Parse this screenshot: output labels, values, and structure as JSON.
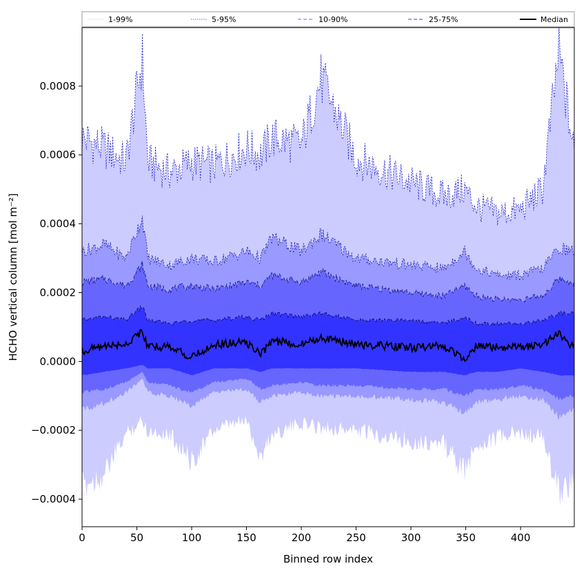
{
  "chart_data": {
    "type": "area",
    "xlabel": "Binned row index",
    "ylabel": "HCHO vertical column [mol m⁻²]",
    "xlim": [
      0,
      449
    ],
    "ylim": [
      -0.00048,
      0.00097
    ],
    "x_ticks": [
      0,
      50,
      100,
      150,
      200,
      250,
      300,
      350,
      400
    ],
    "x_tick_labels": [
      "0",
      "50",
      "100",
      "150",
      "200",
      "250",
      "300",
      "350",
      "400"
    ],
    "y_ticks": [
      -0.0004,
      -0.0002,
      0.0,
      0.0002,
      0.0004,
      0.0006,
      0.0008
    ],
    "y_tick_labels": [
      "−0.0004",
      "−0.0002",
      "0.0000",
      "0.0002",
      "0.0004",
      "0.0006",
      "0.0008"
    ],
    "grid": false,
    "legend_position": "top",
    "legend": [
      {
        "label": "1-99%",
        "style": "dotted",
        "color": "#ccccff"
      },
      {
        "label": "5-95%",
        "style": "dotted",
        "color": "#9999ff"
      },
      {
        "label": "10-90%",
        "style": "dashed",
        "color": "#6666ff"
      },
      {
        "label": "25-75%",
        "style": "dashed",
        "color": "#3333ff"
      },
      {
        "label": "Median",
        "style": "solid",
        "color": "#000000"
      }
    ],
    "x": [
      0,
      20,
      40,
      55,
      60,
      80,
      100,
      120,
      150,
      163,
      173,
      200,
      218,
      250,
      300,
      330,
      349,
      360,
      380,
      400,
      420,
      435,
      449
    ],
    "series": [
      {
        "name": "1-99%",
        "color": "#ccccff",
        "upper": [
          0.00065,
          0.00062,
          0.00058,
          0.00088,
          0.00058,
          0.00055,
          0.00058,
          0.00057,
          0.00062,
          0.0006,
          0.00065,
          0.00063,
          0.00082,
          0.00059,
          0.00052,
          0.00048,
          0.0005,
          0.00045,
          0.00043,
          0.00044,
          0.0005,
          0.0009,
          0.0006
        ],
        "lower": [
          -0.00036,
          -0.00033,
          -0.00021,
          -0.00017,
          -0.0002,
          -0.00021,
          -0.00029,
          -0.0002,
          -0.00017,
          -0.00028,
          -0.00021,
          -0.00018,
          -0.00019,
          -0.0002,
          -0.00023,
          -0.00024,
          -0.00032,
          -0.00024,
          -0.00022,
          -0.00021,
          -0.00022,
          -0.00038,
          -0.00034
        ]
      },
      {
        "name": "5-95%",
        "color": "#9999ff",
        "upper": [
          0.00032,
          0.00034,
          0.0003,
          0.00042,
          0.0003,
          0.00028,
          0.0003,
          0.00029,
          0.00032,
          0.0003,
          0.00036,
          0.00032,
          0.00037,
          0.0003,
          0.00028,
          0.00027,
          0.00032,
          0.00027,
          0.00025,
          0.00025,
          0.00027,
          0.00033,
          0.00032
        ],
        "lower": [
          -0.00014,
          -0.00012,
          -9e-05,
          -5e-05,
          -9e-05,
          -0.0001,
          -0.00013,
          -9e-05,
          -8e-05,
          -0.00012,
          -0.0001,
          -9e-05,
          -0.0001,
          -0.0001,
          -0.00011,
          -0.00012,
          -0.00015,
          -0.00012,
          -0.00011,
          -0.0001,
          -0.00011,
          -0.00016,
          -0.00014
        ]
      },
      {
        "name": "10-90%",
        "color": "#6666ff",
        "upper": [
          0.00023,
          0.00024,
          0.00022,
          0.00028,
          0.00022,
          0.00021,
          0.00022,
          0.00021,
          0.00023,
          0.00022,
          0.00025,
          0.00023,
          0.00026,
          0.00022,
          0.0002,
          0.00019,
          0.00022,
          0.00019,
          0.00018,
          0.00018,
          0.00019,
          0.00024,
          0.00023
        ],
        "lower": [
          -9e-05,
          -8e-05,
          -6e-05,
          -3e-05,
          -6e-05,
          -7e-05,
          -9e-05,
          -6e-05,
          -5e-05,
          -8e-05,
          -7e-05,
          -6e-05,
          -7e-05,
          -7e-05,
          -8e-05,
          -8e-05,
          -0.0001,
          -8e-05,
          -8e-05,
          -7e-05,
          -8e-05,
          -0.00011,
          -0.0001
        ]
      },
      {
        "name": "25-75%",
        "color": "#3333ff",
        "upper": [
          0.00012,
          0.00013,
          0.00012,
          0.00016,
          0.00012,
          0.00011,
          0.00012,
          0.00012,
          0.00013,
          0.00012,
          0.00014,
          0.00013,
          0.00014,
          0.00012,
          0.00012,
          0.00011,
          0.00013,
          0.00011,
          0.00011,
          0.00011,
          0.00012,
          0.00014,
          0.00014
        ],
        "lower": [
          -4e-05,
          -3e-05,
          -2e-05,
          -1e-05,
          -2e-05,
          -2e-05,
          -4e-05,
          -2e-05,
          -2e-05,
          -3e-05,
          -2e-05,
          -2e-05,
          -2e-05,
          -2e-05,
          -3e-05,
          -3e-05,
          -4e-05,
          -3e-05,
          -3e-05,
          -2e-05,
          -3e-05,
          -4e-05,
          -4e-05
        ]
      },
      {
        "name": "Median",
        "color": "#000000",
        "values": [
          3e-05,
          4.5e-05,
          5e-05,
          9e-05,
          4e-05,
          4.5e-05,
          1e-05,
          5e-05,
          5.5e-05,
          2e-05,
          6e-05,
          5e-05,
          7e-05,
          5e-05,
          4e-05,
          4.5e-05,
          1e-05,
          4.5e-05,
          4e-05,
          4e-05,
          5e-05,
          8e-05,
          4e-05
        ]
      }
    ]
  }
}
